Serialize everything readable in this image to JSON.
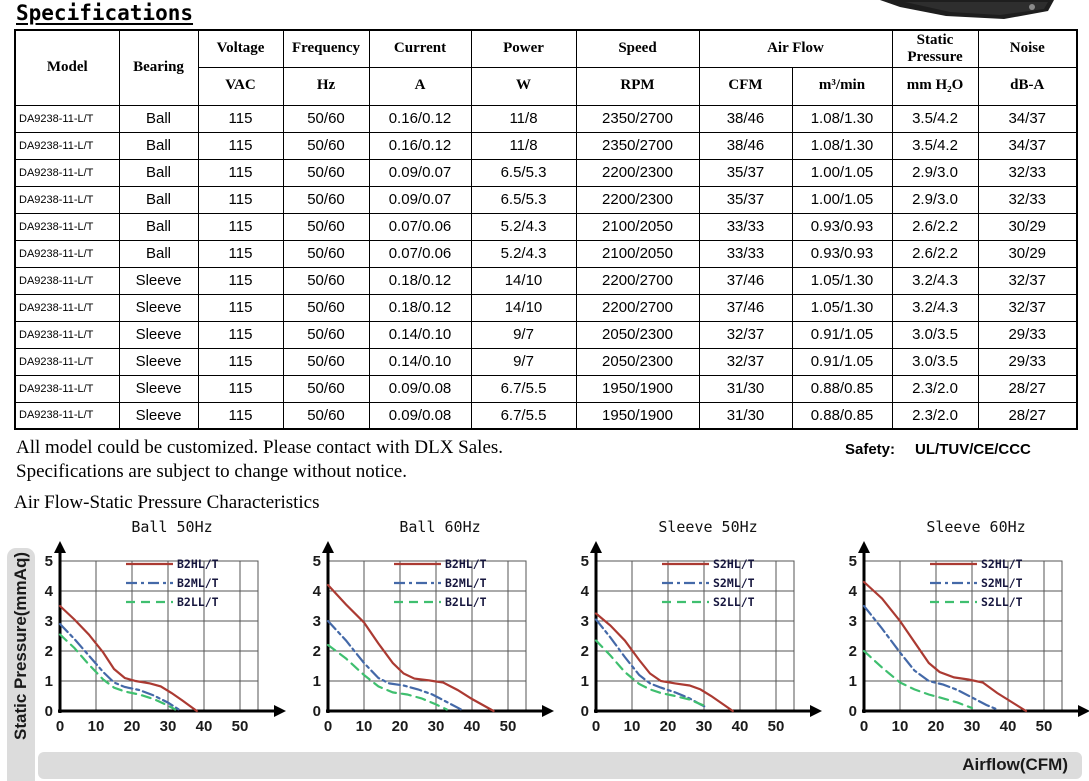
{
  "page": {
    "title": "Specifications",
    "note_line1": "All model could be customized. Please contact with DLX Sales.",
    "note_line2": "Specifications are subject to change without notice.",
    "safety_label": "Safety:",
    "safety_value": "UL/TUV/CE/CCC",
    "charts_section_title": "Air Flow-Static Pressure Characteristics",
    "y_axis_label": "Static Pressure(mmAq)",
    "x_axis_label": "Airflow(CFM)",
    "colors": {
      "strip_gray": "#dcdcdc",
      "grid_line": "#555555",
      "axis": "#000000",
      "legend_text": "#16163e",
      "series_high_red": "#ab3a32",
      "series_mid_blue": "#4469a8",
      "series_low_green": "#3fbf6f"
    }
  },
  "table": {
    "headers": {
      "model": "Model",
      "bearing": "Bearing",
      "voltage": "Voltage",
      "voltage_unit": "VAC",
      "frequency": "Frequency",
      "frequency_unit": "Hz",
      "current": "Current",
      "current_unit": "A",
      "power": "Power",
      "power_unit": "W",
      "speed": "Speed",
      "speed_unit": "RPM",
      "airflow": "Air Flow",
      "airflow_unit1": "CFM",
      "airflow_unit2": "m³/min",
      "static_pressure": "Static Pressure",
      "static_pressure_unit": "mm H₂O",
      "noise": "Noise",
      "noise_unit": "dB-A"
    },
    "rows": [
      [
        "DA9238-11-L/T",
        "Ball",
        "115",
        "50/60",
        "0.16/0.12",
        "11/8",
        "2350/2700",
        "38/46",
        "1.08/1.30",
        "3.5/4.2",
        "34/37"
      ],
      [
        "DA9238-11-L/T",
        "Ball",
        "115",
        "50/60",
        "0.16/0.12",
        "11/8",
        "2350/2700",
        "38/46",
        "1.08/1.30",
        "3.5/4.2",
        "34/37"
      ],
      [
        "DA9238-11-L/T",
        "Ball",
        "115",
        "50/60",
        "0.09/0.07",
        "6.5/5.3",
        "2200/2300",
        "35/37",
        "1.00/1.05",
        "2.9/3.0",
        "32/33"
      ],
      [
        "DA9238-11-L/T",
        "Ball",
        "115",
        "50/60",
        "0.09/0.07",
        "6.5/5.3",
        "2200/2300",
        "35/37",
        "1.00/1.05",
        "2.9/3.0",
        "32/33"
      ],
      [
        "DA9238-11-L/T",
        "Ball",
        "115",
        "50/60",
        "0.07/0.06",
        "5.2/4.3",
        "2100/2050",
        "33/33",
        "0.93/0.93",
        "2.6/2.2",
        "30/29"
      ],
      [
        "DA9238-11-L/T",
        "Ball",
        "115",
        "50/60",
        "0.07/0.06",
        "5.2/4.3",
        "2100/2050",
        "33/33",
        "0.93/0.93",
        "2.6/2.2",
        "30/29"
      ],
      [
        "DA9238-11-L/T",
        "Sleeve",
        "115",
        "50/60",
        "0.18/0.12",
        "14/10",
        "2200/2700",
        "37/46",
        "1.05/1.30",
        "3.2/4.3",
        "32/37"
      ],
      [
        "DA9238-11-L/T",
        "Sleeve",
        "115",
        "50/60",
        "0.18/0.12",
        "14/10",
        "2200/2700",
        "37/46",
        "1.05/1.30",
        "3.2/4.3",
        "32/37"
      ],
      [
        "DA9238-11-L/T",
        "Sleeve",
        "115",
        "50/60",
        "0.14/0.10",
        "9/7",
        "2050/2300",
        "32/37",
        "0.91/1.05",
        "3.0/3.5",
        "29/33"
      ],
      [
        "DA9238-11-L/T",
        "Sleeve",
        "115",
        "50/60",
        "0.14/0.10",
        "9/7",
        "2050/2300",
        "32/37",
        "0.91/1.05",
        "3.0/3.5",
        "29/33"
      ],
      [
        "DA9238-11-L/T",
        "Sleeve",
        "115",
        "50/60",
        "0.09/0.08",
        "6.7/5.5",
        "1950/1900",
        "31/30",
        "0.88/0.85",
        "2.3/2.0",
        "28/27"
      ],
      [
        "DA9238-11-L/T",
        "Sleeve",
        "115",
        "50/60",
        "0.09/0.08",
        "6.7/5.5",
        "1950/1900",
        "31/30",
        "0.88/0.85",
        "2.3/2.0",
        "28/27"
      ]
    ]
  },
  "chart_data": [
    {
      "type": "line",
      "title": "Ball 50Hz",
      "xlabel": "Airflow(CFM)",
      "ylabel": "Static Pressure(mmAq)",
      "xlim": [
        0,
        55
      ],
      "ylim": [
        0,
        5
      ],
      "xticks": [
        0,
        10,
        20,
        30,
        40,
        50
      ],
      "yticks": [
        0,
        1,
        2,
        3,
        4,
        5
      ],
      "grid": true,
      "legend_position": "top-right",
      "series": [
        {
          "name": "B2HL/T",
          "color": "#ab3a32",
          "style": "solid",
          "points": [
            [
              0,
              3.5
            ],
            [
              4,
              3.05
            ],
            [
              8,
              2.55
            ],
            [
              12,
              1.95
            ],
            [
              15,
              1.4
            ],
            [
              18,
              1.1
            ],
            [
              21,
              1.0
            ],
            [
              25,
              0.92
            ],
            [
              28,
              0.82
            ],
            [
              31,
              0.6
            ],
            [
              34,
              0.35
            ],
            [
              38,
              0
            ]
          ]
        },
        {
          "name": "B2ML/T",
          "color": "#4469a8",
          "style": "dashdot",
          "points": [
            [
              0,
              2.9
            ],
            [
              4,
              2.4
            ],
            [
              8,
              1.85
            ],
            [
              12,
              1.3
            ],
            [
              15,
              0.95
            ],
            [
              18,
              0.8
            ],
            [
              22,
              0.7
            ],
            [
              26,
              0.52
            ],
            [
              30,
              0.28
            ],
            [
              33,
              0.05
            ]
          ]
        },
        {
          "name": "B2LL/T",
          "color": "#3fbf6f",
          "style": "dashed",
          "points": [
            [
              0,
              2.55
            ],
            [
              4,
              2.1
            ],
            [
              8,
              1.55
            ],
            [
              12,
              1.05
            ],
            [
              15,
              0.78
            ],
            [
              18,
              0.65
            ],
            [
              22,
              0.55
            ],
            [
              26,
              0.4
            ],
            [
              30,
              0.18
            ],
            [
              32,
              0.05
            ]
          ]
        }
      ]
    },
    {
      "type": "line",
      "title": "Ball 60Hz",
      "xlabel": "Airflow(CFM)",
      "ylabel": "Static Pressure(mmAq)",
      "xlim": [
        0,
        55
      ],
      "ylim": [
        0,
        5
      ],
      "xticks": [
        0,
        10,
        20,
        30,
        40,
        50
      ],
      "yticks": [
        0,
        1,
        2,
        3,
        4,
        5
      ],
      "grid": true,
      "legend_position": "top-right",
      "series": [
        {
          "name": "B2HL/T",
          "color": "#ab3a32",
          "style": "solid",
          "points": [
            [
              0,
              4.2
            ],
            [
              5,
              3.55
            ],
            [
              10,
              2.95
            ],
            [
              14,
              2.25
            ],
            [
              18,
              1.6
            ],
            [
              21,
              1.25
            ],
            [
              24,
              1.08
            ],
            [
              28,
              1.02
            ],
            [
              32,
              0.95
            ],
            [
              36,
              0.7
            ],
            [
              40,
              0.4
            ],
            [
              46,
              0
            ]
          ]
        },
        {
          "name": "B2ML/T",
          "color": "#4469a8",
          "style": "dashdot",
          "points": [
            [
              0,
              3.0
            ],
            [
              5,
              2.35
            ],
            [
              10,
              1.6
            ],
            [
              14,
              1.1
            ],
            [
              17,
              0.92
            ],
            [
              21,
              0.85
            ],
            [
              25,
              0.72
            ],
            [
              29,
              0.55
            ],
            [
              33,
              0.3
            ],
            [
              37,
              0.05
            ]
          ]
        },
        {
          "name": "B2LL/T",
          "color": "#3fbf6f",
          "style": "dashed",
          "points": [
            [
              0,
              2.2
            ],
            [
              5,
              1.75
            ],
            [
              10,
              1.2
            ],
            [
              14,
              0.82
            ],
            [
              18,
              0.62
            ],
            [
              22,
              0.55
            ],
            [
              26,
              0.42
            ],
            [
              30,
              0.22
            ],
            [
              33,
              0.05
            ]
          ]
        }
      ]
    },
    {
      "type": "line",
      "title": "Sleeve 50Hz",
      "xlabel": "Airflow(CFM)",
      "ylabel": "Static Pressure(mmAq)",
      "xlim": [
        0,
        55
      ],
      "ylim": [
        0,
        5
      ],
      "xticks": [
        0,
        10,
        20,
        30,
        40,
        50
      ],
      "yticks": [
        0,
        1,
        2,
        3,
        4,
        5
      ],
      "grid": true,
      "legend_position": "top-right",
      "series": [
        {
          "name": "S2HL/T",
          "color": "#ab3a32",
          "style": "solid",
          "points": [
            [
              0,
              3.25
            ],
            [
              4,
              2.85
            ],
            [
              8,
              2.35
            ],
            [
              12,
              1.7
            ],
            [
              15,
              1.25
            ],
            [
              18,
              1.0
            ],
            [
              22,
              0.92
            ],
            [
              26,
              0.85
            ],
            [
              29,
              0.72
            ],
            [
              32,
              0.5
            ],
            [
              35,
              0.25
            ],
            [
              38,
              0
            ]
          ]
        },
        {
          "name": "S2ML/T",
          "color": "#4469a8",
          "style": "dashdot",
          "points": [
            [
              0,
              3.05
            ],
            [
              4,
              2.45
            ],
            [
              8,
              1.8
            ],
            [
              12,
              1.2
            ],
            [
              15,
              0.92
            ],
            [
              18,
              0.78
            ],
            [
              22,
              0.62
            ],
            [
              26,
              0.42
            ],
            [
              29,
              0.22
            ],
            [
              31,
              0.1
            ]
          ]
        },
        {
          "name": "S2LL/T",
          "color": "#3fbf6f",
          "style": "dashed",
          "points": [
            [
              0,
              2.35
            ],
            [
              4,
              1.85
            ],
            [
              8,
              1.3
            ],
            [
              12,
              0.9
            ],
            [
              15,
              0.72
            ],
            [
              18,
              0.6
            ],
            [
              22,
              0.5
            ],
            [
              26,
              0.38
            ],
            [
              30,
              0.18
            ]
          ]
        }
      ]
    },
    {
      "type": "line",
      "title": "Sleeve 60Hz",
      "xlabel": "Airflow(CFM)",
      "ylabel": "Static Pressure(mmAq)",
      "xlim": [
        0,
        55
      ],
      "ylim": [
        0,
        5
      ],
      "xticks": [
        0,
        10,
        20,
        30,
        40,
        50
      ],
      "yticks": [
        0,
        1,
        2,
        3,
        4,
        5
      ],
      "grid": true,
      "legend_position": "top-right",
      "series": [
        {
          "name": "S2HL/T",
          "color": "#ab3a32",
          "style": "solid",
          "points": [
            [
              0,
              4.3
            ],
            [
              5,
              3.75
            ],
            [
              10,
              3.0
            ],
            [
              14,
              2.3
            ],
            [
              18,
              1.6
            ],
            [
              21,
              1.3
            ],
            [
              25,
              1.12
            ],
            [
              29,
              1.05
            ],
            [
              33,
              0.95
            ],
            [
              37,
              0.6
            ],
            [
              41,
              0.3
            ],
            [
              45,
              0
            ]
          ]
        },
        {
          "name": "S2ML/T",
          "color": "#4469a8",
          "style": "dashdot",
          "points": [
            [
              0,
              3.5
            ],
            [
              5,
              2.75
            ],
            [
              10,
              1.95
            ],
            [
              14,
              1.35
            ],
            [
              18,
              1.0
            ],
            [
              22,
              0.88
            ],
            [
              26,
              0.7
            ],
            [
              30,
              0.45
            ],
            [
              34,
              0.2
            ],
            [
              37,
              0.05
            ]
          ]
        },
        {
          "name": "S2LL/T",
          "color": "#3fbf6f",
          "style": "dashed",
          "points": [
            [
              0,
              2.0
            ],
            [
              5,
              1.45
            ],
            [
              10,
              0.95
            ],
            [
              14,
              0.72
            ],
            [
              18,
              0.55
            ],
            [
              22,
              0.42
            ],
            [
              26,
              0.28
            ],
            [
              30,
              0.1
            ]
          ]
        }
      ]
    }
  ]
}
